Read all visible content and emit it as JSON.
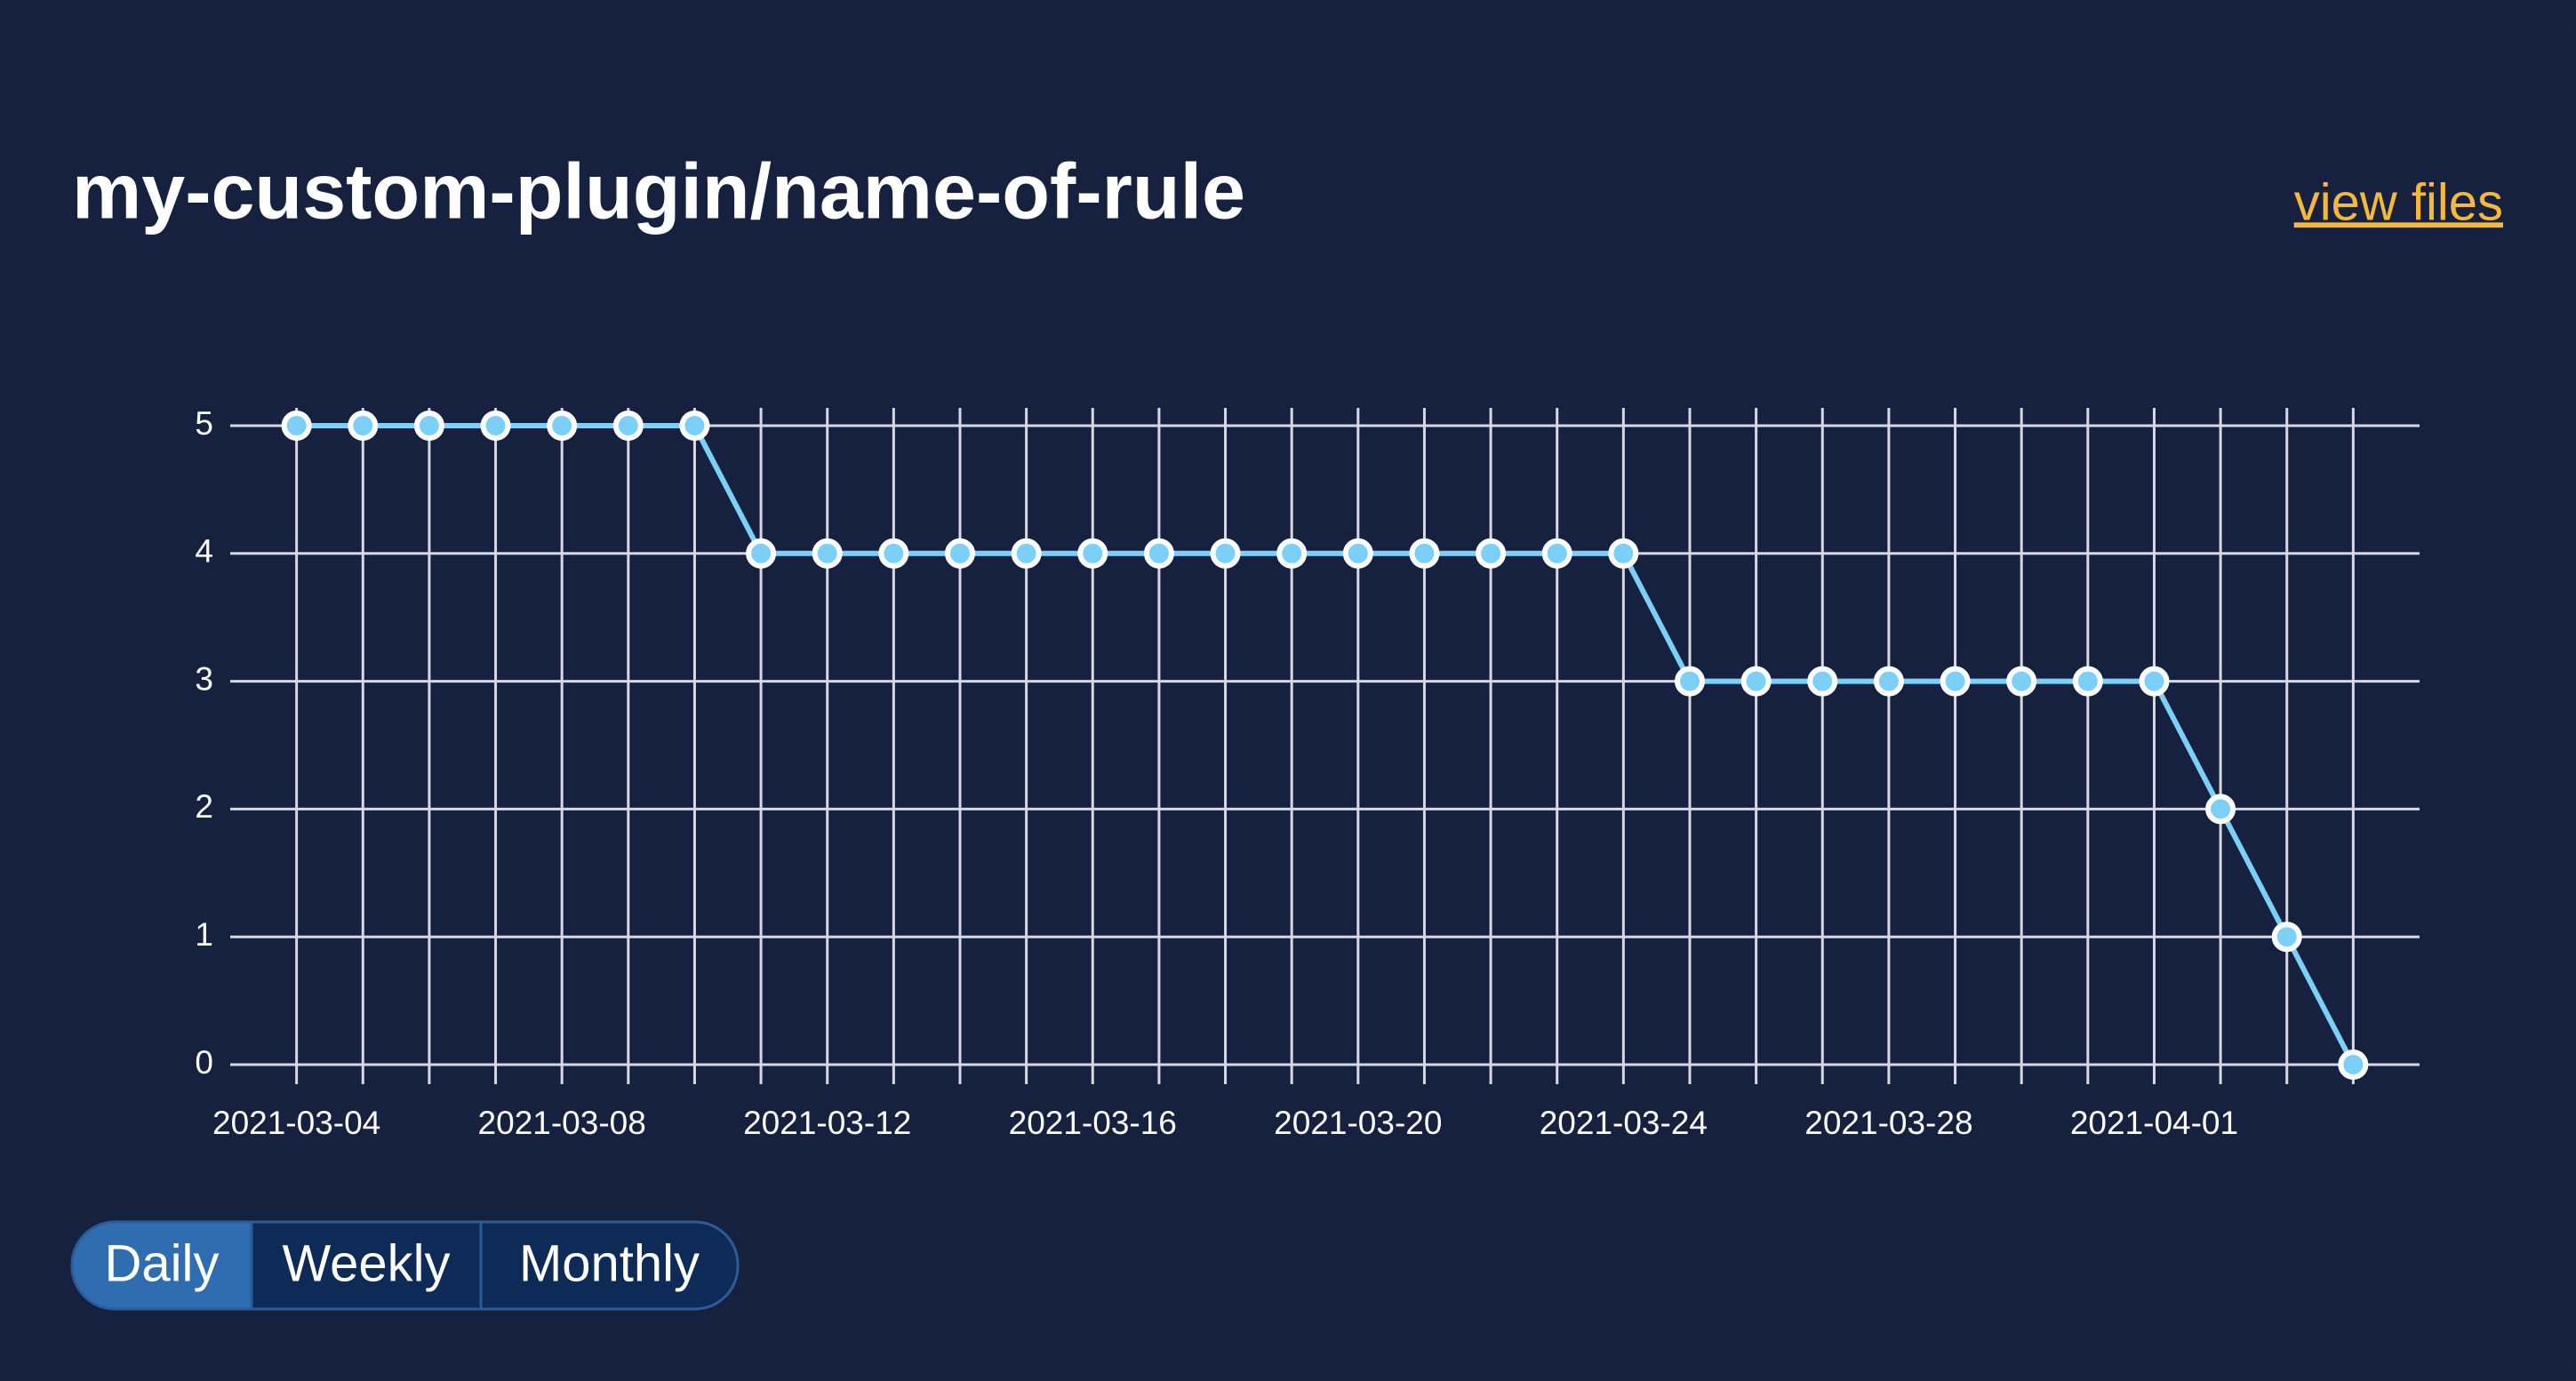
{
  "chart_data": {
    "type": "line",
    "title": "my-custom-plugin/name-of-rule",
    "x": [
      "2021-03-04",
      "2021-03-05",
      "2021-03-06",
      "2021-03-07",
      "2021-03-08",
      "2021-03-09",
      "2021-03-10",
      "2021-03-11",
      "2021-03-12",
      "2021-03-13",
      "2021-03-14",
      "2021-03-15",
      "2021-03-16",
      "2021-03-17",
      "2021-03-18",
      "2021-03-19",
      "2021-03-20",
      "2021-03-21",
      "2021-03-22",
      "2021-03-23",
      "2021-03-24",
      "2021-03-25",
      "2021-03-26",
      "2021-03-27",
      "2021-03-28",
      "2021-03-29",
      "2021-03-30",
      "2021-03-31",
      "2021-04-01",
      "2021-04-02",
      "2021-04-03",
      "2021-04-04"
    ],
    "series": [
      {
        "color": "#7cd0f7",
        "values": [
          5,
          5,
          5,
          5,
          5,
          5,
          5,
          4,
          4,
          4,
          4,
          4,
          4,
          4,
          4,
          4,
          4,
          4,
          4,
          4,
          4,
          3,
          3,
          3,
          3,
          3,
          3,
          3,
          3,
          2,
          1,
          0
        ]
      }
    ],
    "xlim": [
      "2021-03-03",
      "2021-04-05"
    ],
    "xticks": [
      "2021-03-04",
      "2021-03-08",
      "2021-03-12",
      "2021-03-16",
      "2021-03-20",
      "2021-03-24",
      "2021-03-28",
      "2021-04-01"
    ],
    "ylim": [
      0,
      5
    ],
    "yticks": [
      0,
      1,
      2,
      3,
      4,
      5
    ],
    "grid": true
  },
  "link": "view files",
  "periods": [
    "Daily",
    "Weekly",
    "Monthly"
  ],
  "active_period": 0
}
